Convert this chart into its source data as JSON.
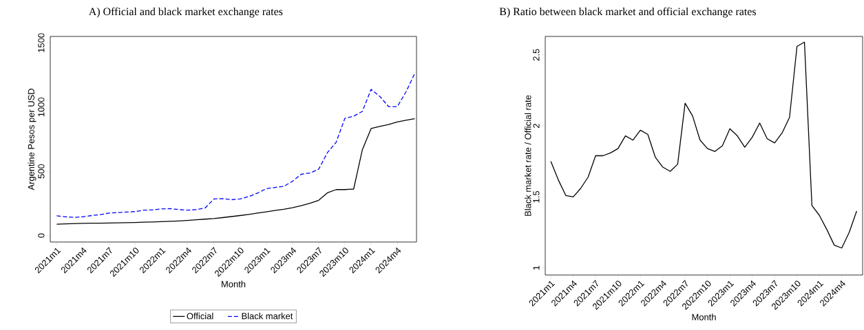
{
  "chart_data": [
    {
      "type": "line",
      "title": "A) Official and black market exchange rates",
      "xlabel": "Month",
      "ylabel": "Argentine Pesos per USD",
      "categories": [
        "2021m1",
        null,
        null,
        "2021m4",
        null,
        null,
        "2021m7",
        null,
        null,
        "2021m10",
        null,
        null,
        "2022m1",
        null,
        null,
        "2022m4",
        null,
        null,
        "2022m7",
        null,
        null,
        "2022m10",
        null,
        null,
        "2023m1",
        null,
        null,
        "2023m4",
        null,
        null,
        "2023m7",
        null,
        null,
        "2023m10",
        null,
        null,
        "2024m1",
        null,
        null,
        "2024m4",
        null,
        null
      ],
      "series": [
        {
          "name": "Official",
          "color": "#000000",
          "line_style": "solid",
          "values": [
            88,
            91,
            93,
            95,
            96,
            97,
            98,
            99,
            101,
            102,
            104,
            106,
            108,
            111,
            114,
            118,
            123,
            128,
            133,
            140,
            148,
            156,
            165,
            175,
            185,
            195,
            205,
            217,
            233,
            252,
            275,
            333,
            358,
            358,
            362,
            669,
            833,
            850,
            865,
            885,
            898,
            910
          ]
        },
        {
          "name": "Black market",
          "color": "#0000ff",
          "line_style": "dashed",
          "values": [
            154,
            146,
            142,
            146,
            156,
            163,
            175,
            179,
            183,
            187,
            198,
            200,
            208,
            210,
            202,
            198,
            202,
            215,
            285,
            288,
            279,
            285,
            304,
            331,
            365,
            375,
            383,
            423,
            477,
            487,
            517,
            646,
            727,
            913,
            929,
            967,
            1138,
            1083,
            1004,
            1004,
            1119,
            1262
          ]
        }
      ],
      "ylim": [
        -50,
        1550
      ],
      "yticks": [
        0,
        500,
        1000,
        1500
      ],
      "legend": "bottom"
    },
    {
      "type": "line",
      "title": "B) Ratio between black market and official exchange rates",
      "xlabel": "Month",
      "ylabel": "Black market rate / Official rate",
      "categories": [
        "2021m1",
        null,
        null,
        "2021m4",
        null,
        null,
        "2021m7",
        null,
        null,
        "2021m10",
        null,
        null,
        "2022m1",
        null,
        null,
        "2022m4",
        null,
        null,
        "2022m7",
        null,
        null,
        "2022m10",
        null,
        null,
        "2023m1",
        null,
        null,
        "2023m4",
        null,
        null,
        "2023m7",
        null,
        null,
        "2023m10",
        null,
        null,
        "2024m1",
        null,
        null,
        "2024m4",
        null,
        null
      ],
      "series": [
        {
          "color": "#000000",
          "values": [
            1.75,
            1.62,
            1.51,
            1.5,
            1.56,
            1.64,
            1.79,
            1.79,
            1.81,
            1.84,
            1.93,
            1.9,
            1.97,
            1.94,
            1.78,
            1.71,
            1.68,
            1.73,
            2.16,
            2.07,
            1.9,
            1.84,
            1.82,
            1.86,
            1.98,
            1.93,
            1.85,
            1.92,
            2.02,
            1.91,
            1.88,
            1.95,
            2.06,
            2.56,
            2.59,
            1.44,
            1.37,
            1.27,
            1.16,
            1.14,
            1.25,
            1.4
          ]
        }
      ],
      "ylim": [
        0.95,
        2.63
      ],
      "yticks": [
        1,
        1.5,
        2,
        2.5
      ]
    }
  ]
}
